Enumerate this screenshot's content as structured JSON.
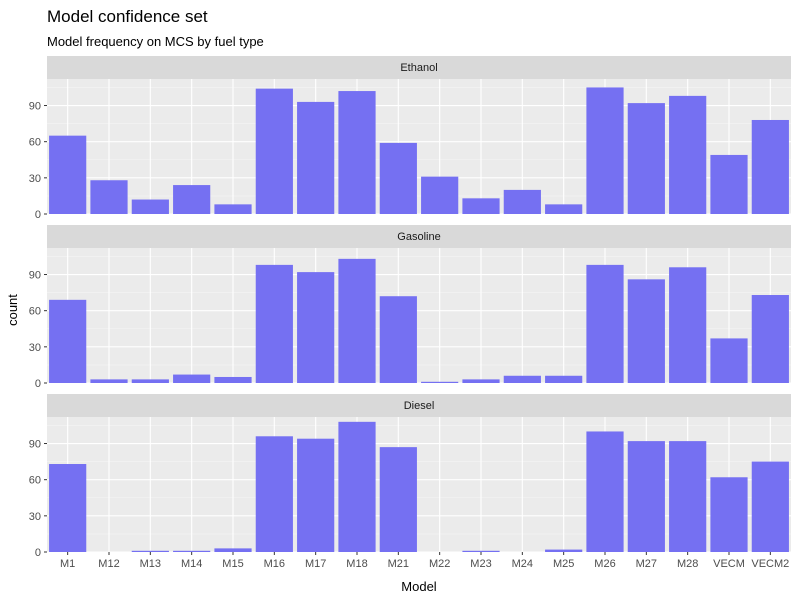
{
  "chart_data": {
    "type": "bar",
    "title": "Model confidence set",
    "subtitle": "Model frequency on MCS by fuel type",
    "xlabel": "Model",
    "ylabel": "count",
    "ylim": [
      0,
      112
    ],
    "yticks": [
      0,
      30,
      60,
      90
    ],
    "grid": true,
    "facet_layout": "vertical",
    "bar_color": "#7570f2",
    "panel_bg": "#ebebeb",
    "strip_bg": "#d9d9d9",
    "categories": [
      "M1",
      "M12",
      "M13",
      "M14",
      "M15",
      "M16",
      "M17",
      "M18",
      "M21",
      "M22",
      "M23",
      "M24",
      "M25",
      "M26",
      "M27",
      "M28",
      "VECM",
      "VECM2"
    ],
    "series": [
      {
        "name": "Ethanol",
        "values": [
          65,
          28,
          12,
          24,
          8,
          104,
          93,
          102,
          59,
          31,
          13,
          20,
          8,
          105,
          92,
          98,
          49,
          78
        ]
      },
      {
        "name": "Gasoline",
        "values": [
          69,
          3,
          3,
          7,
          5,
          98,
          92,
          103,
          72,
          1,
          3,
          6,
          6,
          98,
          86,
          96,
          37,
          73
        ]
      },
      {
        "name": "Diesel",
        "values": [
          73,
          0,
          1,
          1,
          3,
          96,
          94,
          108,
          87,
          0,
          1,
          0,
          2,
          100,
          92,
          92,
          62,
          75
        ]
      }
    ]
  }
}
